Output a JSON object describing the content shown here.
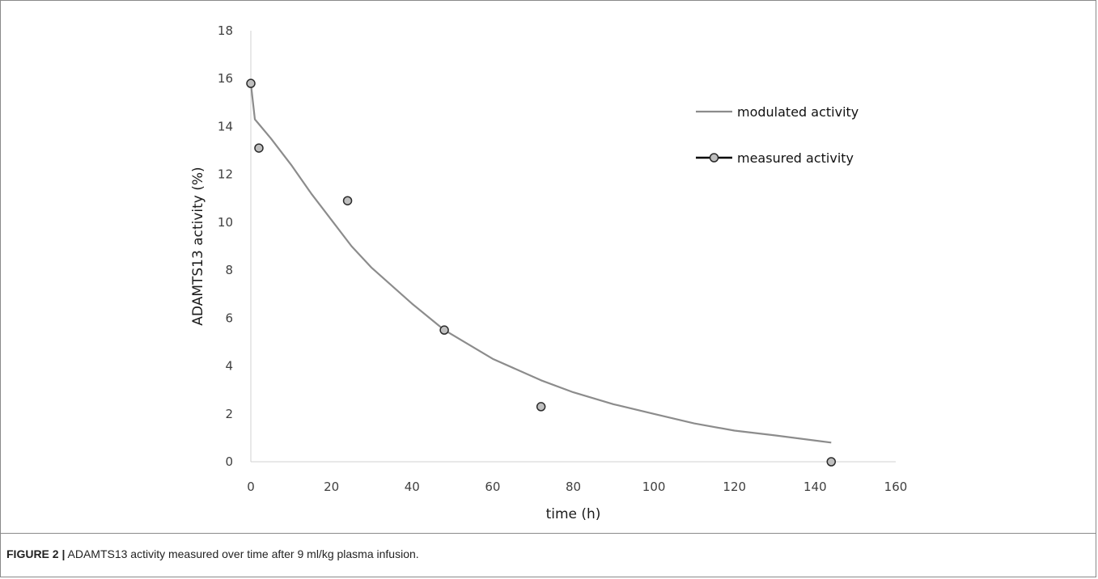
{
  "caption": {
    "label": "FIGURE 2 |",
    "text": "ADAMTS13 activity measured over time after 9 ml/kg plasma infusion."
  },
  "chart_data": {
    "type": "scatter",
    "title": "",
    "xlabel": "time (h)",
    "ylabel": "ADAMTS13 activity (%)",
    "xlim": [
      0,
      160
    ],
    "ylim": [
      0,
      18
    ],
    "xticks": [
      0,
      20,
      40,
      60,
      80,
      100,
      120,
      140,
      160
    ],
    "yticks": [
      0,
      2,
      4,
      6,
      8,
      10,
      12,
      14,
      16,
      18
    ],
    "grid": false,
    "legend_position": "top-right",
    "colors": {
      "line": "#8c8c8c",
      "marker_fill": "#bfbfbf",
      "marker_edge": "#2b2b2b",
      "legend_measured_line": "#000000"
    },
    "series": [
      {
        "name": "modulated activity",
        "kind": "line",
        "x": [
          0,
          1,
          2,
          5,
          10,
          15,
          20,
          25,
          30,
          40,
          48,
          60,
          72,
          80,
          90,
          100,
          110,
          120,
          130,
          144
        ],
        "values": [
          15.8,
          14.3,
          14.1,
          13.5,
          12.4,
          11.2,
          10.1,
          9.0,
          8.1,
          6.6,
          5.5,
          4.3,
          3.4,
          2.9,
          2.4,
          2.0,
          1.6,
          1.3,
          1.1,
          0.8
        ]
      },
      {
        "name": "measured activity",
        "kind": "scatter",
        "x": [
          0,
          2,
          24,
          48,
          72,
          144
        ],
        "values": [
          15.8,
          13.1,
          10.9,
          5.5,
          2.3,
          0.0
        ]
      }
    ]
  }
}
